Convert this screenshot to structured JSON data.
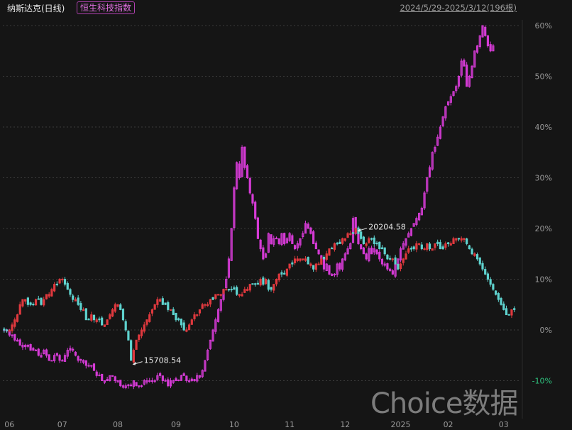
{
  "header": {
    "title": "纳斯达克(日线)",
    "compare_label": "恒生科技指数",
    "range_label": "2024/5/29-2025/3/12(196根)"
  },
  "watermark": "Choice数据",
  "colors": {
    "background": "#151515",
    "up": "#e0393e",
    "down": "#5fd3cf",
    "compare": "#d63bd6",
    "grid": "#3a3a3a",
    "negative_tick": "#2ec27e"
  },
  "chart_data": {
    "type": "line",
    "ylabel": "",
    "xlabel": "",
    "ylim": [
      -0.14,
      0.62
    ],
    "y_ticks": [
      "60%",
      "50%",
      "40%",
      "30%",
      "20%",
      "10%",
      "0%",
      "-10%"
    ],
    "y_tick_values": [
      0.6,
      0.5,
      0.4,
      0.3,
      0.2,
      0.1,
      0.0,
      -0.1
    ],
    "x_ticks": [
      "06",
      "07",
      "08",
      "09",
      "10",
      "11",
      "12",
      "2025",
      "02",
      "03"
    ],
    "n_bars": 196,
    "grid": true,
    "annotations": [
      {
        "label": "15708.54",
        "series": "纳斯达克",
        "bar_index": 48,
        "pct": -0.068
      },
      {
        "label": "20204.58",
        "series": "纳斯达克",
        "bar_index": 133,
        "pct": 0.195
      }
    ],
    "series": [
      {
        "name": "纳斯达克",
        "style": "candlestick",
        "values": [
          0.0,
          0.0,
          0.0,
          0.01,
          0.02,
          0.03,
          0.05,
          0.06,
          0.06,
          0.05,
          0.05,
          0.05,
          0.06,
          0.06,
          0.05,
          0.06,
          0.07,
          0.07,
          0.08,
          0.09,
          0.09,
          0.1,
          0.1,
          0.09,
          0.08,
          0.07,
          0.06,
          0.06,
          0.05,
          0.04,
          0.04,
          0.02,
          0.02,
          0.03,
          0.02,
          0.02,
          0.02,
          0.01,
          0.01,
          0.02,
          0.03,
          0.04,
          0.05,
          0.05,
          0.04,
          0.02,
          0.0,
          -0.02,
          -0.06,
          -0.04,
          -0.02,
          -0.01,
          0.0,
          0.01,
          0.02,
          0.03,
          0.04,
          0.05,
          0.06,
          0.06,
          0.05,
          0.05,
          0.04,
          0.04,
          0.03,
          0.02,
          0.02,
          0.01,
          0.0,
          0.0,
          0.01,
          0.02,
          0.03,
          0.03,
          0.04,
          0.05,
          0.05,
          0.05,
          0.06,
          0.06,
          0.07,
          0.07,
          0.07,
          0.08,
          0.08,
          0.08,
          0.08,
          0.08,
          0.07,
          0.07,
          0.07,
          0.08,
          0.08,
          0.09,
          0.09,
          0.09,
          0.09,
          0.1,
          0.09,
          0.1,
          0.08,
          0.08,
          0.09,
          0.1,
          0.11,
          0.11,
          0.11,
          0.12,
          0.13,
          0.13,
          0.14,
          0.14,
          0.14,
          0.14,
          0.14,
          0.13,
          0.13,
          0.12,
          0.13,
          0.13,
          0.14,
          0.14,
          0.15,
          0.16,
          0.16,
          0.17,
          0.17,
          0.17,
          0.18,
          0.18,
          0.19,
          0.19,
          0.19,
          0.2,
          0.19,
          0.18,
          0.17,
          0.17,
          0.18,
          0.18,
          0.17,
          0.17,
          0.16,
          0.16,
          0.15,
          0.14,
          0.14,
          0.14,
          0.13,
          0.12,
          0.13,
          0.14,
          0.15,
          0.16,
          0.16,
          0.16,
          0.17,
          0.17,
          0.16,
          0.16,
          0.17,
          0.16,
          0.16,
          0.17,
          0.17,
          0.16,
          0.16,
          0.17,
          0.17,
          0.17,
          0.18,
          0.18,
          0.18,
          0.18,
          0.18,
          0.17,
          0.16,
          0.15,
          0.15,
          0.14,
          0.13,
          0.12,
          0.11,
          0.1,
          0.09,
          0.08,
          0.07,
          0.06,
          0.05,
          0.04,
          0.03,
          0.03,
          0.04,
          0.04
        ]
      },
      {
        "name": "恒生科技指数",
        "style": "candlestick",
        "values": [
          0.0,
          0.0,
          -0.01,
          -0.01,
          -0.02,
          -0.02,
          -0.03,
          -0.03,
          -0.03,
          -0.03,
          -0.04,
          -0.04,
          -0.04,
          -0.05,
          -0.05,
          -0.04,
          -0.05,
          -0.06,
          -0.06,
          -0.05,
          -0.05,
          -0.06,
          -0.06,
          -0.05,
          -0.04,
          -0.04,
          -0.04,
          -0.05,
          -0.06,
          -0.06,
          -0.06,
          -0.07,
          -0.07,
          -0.07,
          -0.08,
          -0.09,
          -0.09,
          -0.1,
          -0.1,
          -0.1,
          -0.09,
          -0.09,
          -0.1,
          -0.1,
          -0.11,
          -0.11,
          -0.11,
          -0.11,
          -0.11,
          -0.1,
          -0.11,
          -0.11,
          -0.11,
          -0.1,
          -0.1,
          -0.1,
          -0.1,
          -0.1,
          -0.09,
          -0.09,
          -0.1,
          -0.1,
          -0.11,
          -0.1,
          -0.1,
          -0.1,
          -0.1,
          -0.09,
          -0.09,
          -0.1,
          -0.1,
          -0.1,
          -0.1,
          -0.09,
          -0.09,
          -0.08,
          -0.06,
          -0.04,
          -0.02,
          0.0,
          0.02,
          0.04,
          0.06,
          0.08,
          0.1,
          0.14,
          0.2,
          0.28,
          0.33,
          0.3,
          0.36,
          0.32,
          0.3,
          0.27,
          0.25,
          0.22,
          0.18,
          0.16,
          0.14,
          0.15,
          0.19,
          0.17,
          0.18,
          0.18,
          0.17,
          0.19,
          0.17,
          0.18,
          0.19,
          0.17,
          0.16,
          0.17,
          0.18,
          0.19,
          0.21,
          0.2,
          0.19,
          0.17,
          0.16,
          0.15,
          0.14,
          0.12,
          0.13,
          0.11,
          0.11,
          0.11,
          0.13,
          0.12,
          0.14,
          0.15,
          0.16,
          0.17,
          0.22,
          0.19,
          0.17,
          0.16,
          0.15,
          0.14,
          0.16,
          0.15,
          0.16,
          0.15,
          0.14,
          0.13,
          0.13,
          0.12,
          0.12,
          0.11,
          0.13,
          0.14,
          0.16,
          0.17,
          0.18,
          0.19,
          0.2,
          0.21,
          0.22,
          0.23,
          0.24,
          0.27,
          0.3,
          0.32,
          0.35,
          0.36,
          0.38,
          0.4,
          0.42,
          0.44,
          0.45,
          0.46,
          0.47,
          0.48,
          0.5,
          0.53,
          0.52,
          0.48,
          0.5,
          0.52,
          0.55,
          0.56,
          0.58,
          0.6,
          0.58,
          0.56,
          0.55,
          0.56
        ]
      }
    ]
  }
}
